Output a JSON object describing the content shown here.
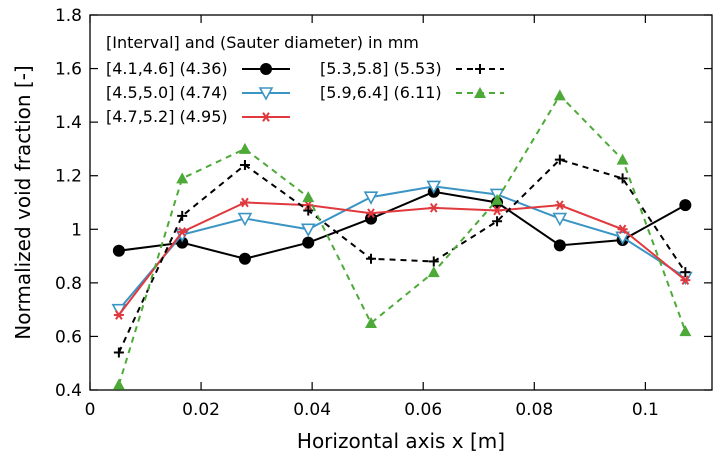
{
  "chart_data": {
    "type": "line",
    "title": "",
    "xlabel": "Horizontal axis x [m]",
    "ylabel": "Normalized void fraction [-]",
    "xlim": [
      0,
      0.112
    ],
    "ylim": [
      0.4,
      1.8
    ],
    "xticks": [
      0,
      0.02,
      0.04,
      0.06,
      0.08,
      0.1
    ],
    "xtick_labels": [
      "0",
      "0.02",
      "0.04",
      "0.06",
      "0.08",
      "0.1"
    ],
    "yticks": [
      0.4,
      0.6,
      0.8,
      1.0,
      1.2,
      1.4,
      1.6,
      1.8
    ],
    "ytick_labels": [
      "0.4",
      "0.6",
      "0.8",
      "1",
      "1.2",
      "1.4",
      "1.6",
      "1.8"
    ],
    "grid": false,
    "legend_title": "[Interval] and (Sauter diameter) in mm",
    "legend_position": "top-left",
    "x": [
      0.0052,
      0.0166,
      0.0279,
      0.0393,
      0.0506,
      0.0619,
      0.0733,
      0.0846,
      0.0959,
      0.1072
    ],
    "series": [
      {
        "name": "[4.1,4.6] (4.36)",
        "color": "#000000",
        "marker": "filled-circle",
        "dash": "solid",
        "values": [
          0.92,
          0.95,
          0.89,
          0.95,
          1.04,
          1.14,
          1.1,
          0.94,
          0.96,
          1.09
        ]
      },
      {
        "name": "[4.5,5.0] (4.74)",
        "color": "#3b95c4",
        "marker": "open-triangle-down",
        "dash": "solid",
        "values": [
          0.7,
          0.98,
          1.04,
          1.0,
          1.12,
          1.16,
          1.13,
          1.04,
          0.97,
          0.82
        ]
      },
      {
        "name": "[4.7,5.2] (4.95)",
        "color": "#e0393e",
        "marker": "asterisk",
        "dash": "solid",
        "values": [
          0.68,
          0.99,
          1.1,
          1.09,
          1.06,
          1.08,
          1.07,
          1.09,
          1.0,
          0.81
        ]
      },
      {
        "name": "[5.3,5.8] (5.53)",
        "color": "#000000",
        "marker": "plus",
        "dash": "dashed",
        "values": [
          0.54,
          1.05,
          1.24,
          1.07,
          0.89,
          0.88,
          1.03,
          1.26,
          1.19,
          0.84
        ]
      },
      {
        "name": "[5.9,6.4] (6.11)",
        "color": "#4daa38",
        "marker": "filled-triangle-up",
        "dash": "dashed",
        "values": [
          0.42,
          1.19,
          1.3,
          1.12,
          0.65,
          0.84,
          1.11,
          1.5,
          1.26,
          0.62
        ]
      }
    ]
  }
}
